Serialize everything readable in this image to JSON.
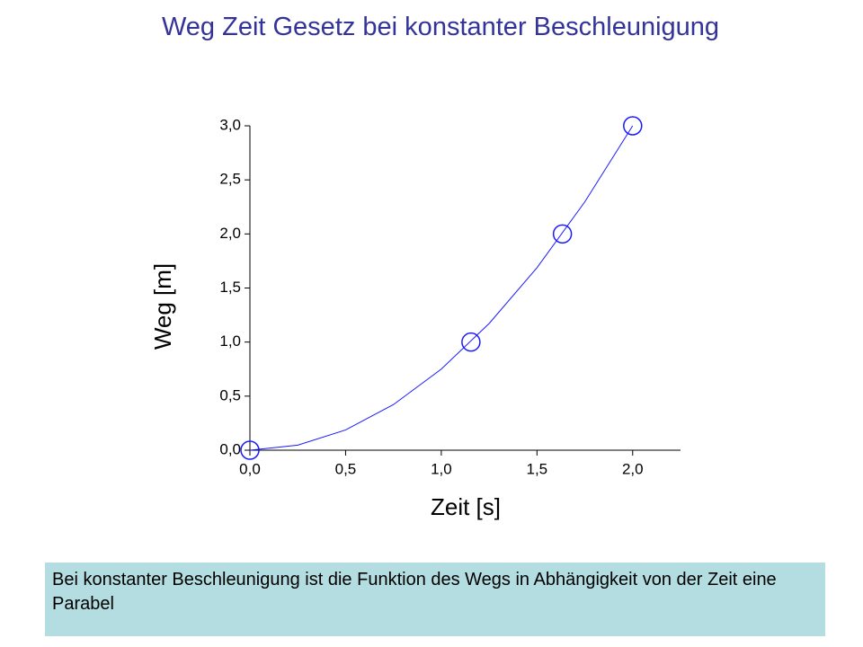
{
  "title": "Weg Zeit Gesetz bei konstanter Beschleunigung",
  "chart_data": {
    "type": "scatter",
    "x_label": "Zeit [s]",
    "y_label": "Weg [m]",
    "x": [
      0,
      1.155,
      1.633,
      2.0
    ],
    "values": [
      0,
      1.0,
      2.0,
      3.0
    ],
    "fit": {
      "x": [
        0,
        0.25,
        0.5,
        0.75,
        1.0,
        1.25,
        1.5,
        1.75,
        2.0
      ],
      "values": [
        0,
        0.046875,
        0.1875,
        0.421875,
        0.75,
        1.171875,
        1.6875,
        2.296875,
        3.0
      ]
    },
    "color": "#1a1aff",
    "xlim": [
      0,
      2.25
    ],
    "ylim": [
      0,
      3
    ],
    "xticks": [
      {
        "value": 0,
        "label": "0,0"
      },
      {
        "value": 0.5,
        "label": "0,5"
      },
      {
        "value": 1.0,
        "label": "1,0"
      },
      {
        "value": 1.5,
        "label": "1,5"
      },
      {
        "value": 2.0,
        "label": "2,0"
      }
    ],
    "yticks": [
      {
        "value": 0,
        "label": "0,0"
      },
      {
        "value": 0.5,
        "label": "0,5"
      },
      {
        "value": 1.0,
        "label": "1,0"
      },
      {
        "value": 1.5,
        "label": "1,5"
      },
      {
        "value": 2.0,
        "label": "2,0"
      },
      {
        "value": 2.5,
        "label": "2,5"
      },
      {
        "value": 3.0,
        "label": "3,0"
      }
    ]
  },
  "caption": "Bei konstanter Beschleunigung ist die Funktion des Wegs in Abhängigkeit von der Zeit eine Parabel"
}
